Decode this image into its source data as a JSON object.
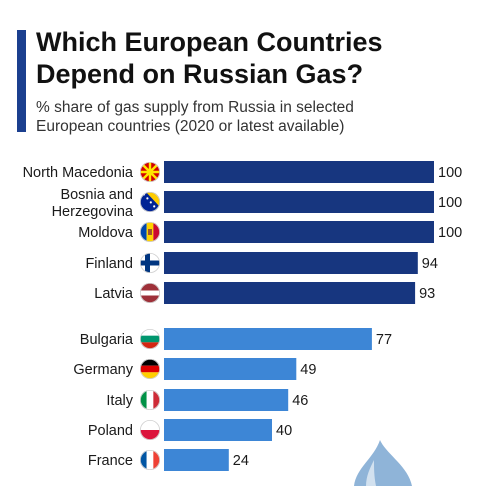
{
  "header": {
    "title_line1": "Which European Countries",
    "title_line2": "Depend on Russian Gas?",
    "subtitle_line1": "% share of gas supply from Russia in selected",
    "subtitle_line2": "European countries (2020 or latest available)"
  },
  "colors": {
    "accent": "#1b3f8f",
    "group1": "#17367f",
    "group2": "#3d86d6"
  },
  "chart_data": {
    "type": "bar",
    "orientation": "horizontal",
    "categories": [
      "North Macedonia",
      "Bosnia and Herzegovina",
      "Moldova",
      "Finland",
      "Latvia",
      "Bulgaria",
      "Germany",
      "Italy",
      "Poland",
      "France"
    ],
    "values": [
      100,
      100,
      100,
      94,
      93,
      77,
      49,
      46,
      40,
      24
    ],
    "groups": [
      1,
      1,
      1,
      1,
      1,
      2,
      2,
      2,
      2,
      2
    ],
    "xlim": [
      0,
      100
    ],
    "grid": false,
    "flags": [
      "north-macedonia-flag-icon",
      "bosnia-flag-icon",
      "moldova-flag-icon",
      "finland-flag-icon",
      "latvia-flag-icon",
      "bulgaria-flag-icon",
      "germany-flag-icon",
      "italy-flag-icon",
      "poland-flag-icon",
      "france-flag-icon"
    ]
  }
}
